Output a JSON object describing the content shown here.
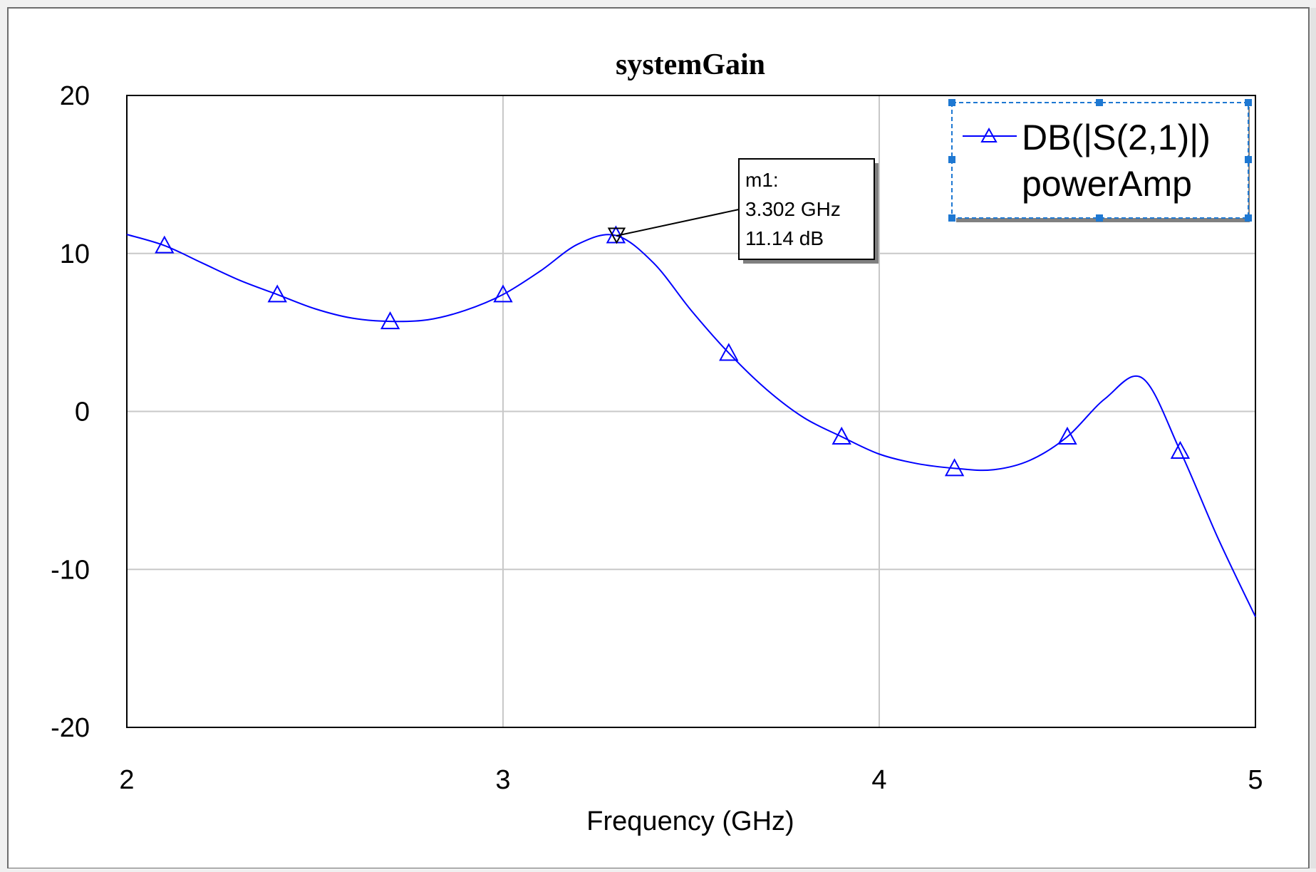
{
  "chart_data": {
    "type": "line",
    "title": "systemGain",
    "xlabel": "Frequency (GHz)",
    "ylabel": "",
    "xlim": [
      2,
      5
    ],
    "ylim": [
      -20,
      20
    ],
    "x_ticks": [
      "2",
      "3",
      "4",
      "5"
    ],
    "y_ticks": [
      "20",
      "10",
      "0",
      "-10",
      "-20"
    ],
    "grid": true,
    "legend_position": "top-right",
    "series": [
      {
        "name": "DB(|S(2,1)|)",
        "sublabel": "powerAmp",
        "color": "#0000ff",
        "marker": "triangle",
        "x": [
          2.0,
          2.1,
          2.2,
          2.3,
          2.4,
          2.5,
          2.6,
          2.7,
          2.8,
          2.9,
          3.0,
          3.1,
          3.2,
          3.3,
          3.4,
          3.5,
          3.6,
          3.7,
          3.8,
          3.9,
          4.0,
          4.1,
          4.2,
          4.3,
          4.4,
          4.5,
          4.6,
          4.7,
          4.8,
          4.9,
          5.0
        ],
        "y": [
          11.2,
          10.5,
          9.4,
          8.3,
          7.4,
          6.5,
          5.9,
          5.7,
          5.8,
          6.4,
          7.4,
          8.9,
          10.6,
          11.14,
          9.4,
          6.4,
          3.7,
          1.4,
          -0.4,
          -1.6,
          -2.7,
          -3.3,
          -3.6,
          -3.7,
          -3.1,
          -1.6,
          0.8,
          2.1,
          -2.5,
          -8.0,
          -13.0
        ],
        "marker_x": [
          2.1,
          2.4,
          2.7,
          3.0,
          3.3,
          3.6,
          3.9,
          4.2,
          4.5,
          4.8
        ]
      }
    ]
  },
  "marker": {
    "name": "m1:",
    "freq_label": "3.302 GHz",
    "value_label": "11.14 dB",
    "x": 3.302,
    "y": 11.14
  },
  "colors": {
    "series": "#0000ff",
    "grid": "#c8c8c8",
    "frame_border": "#555555",
    "legend_handle": "#1e78d2"
  }
}
